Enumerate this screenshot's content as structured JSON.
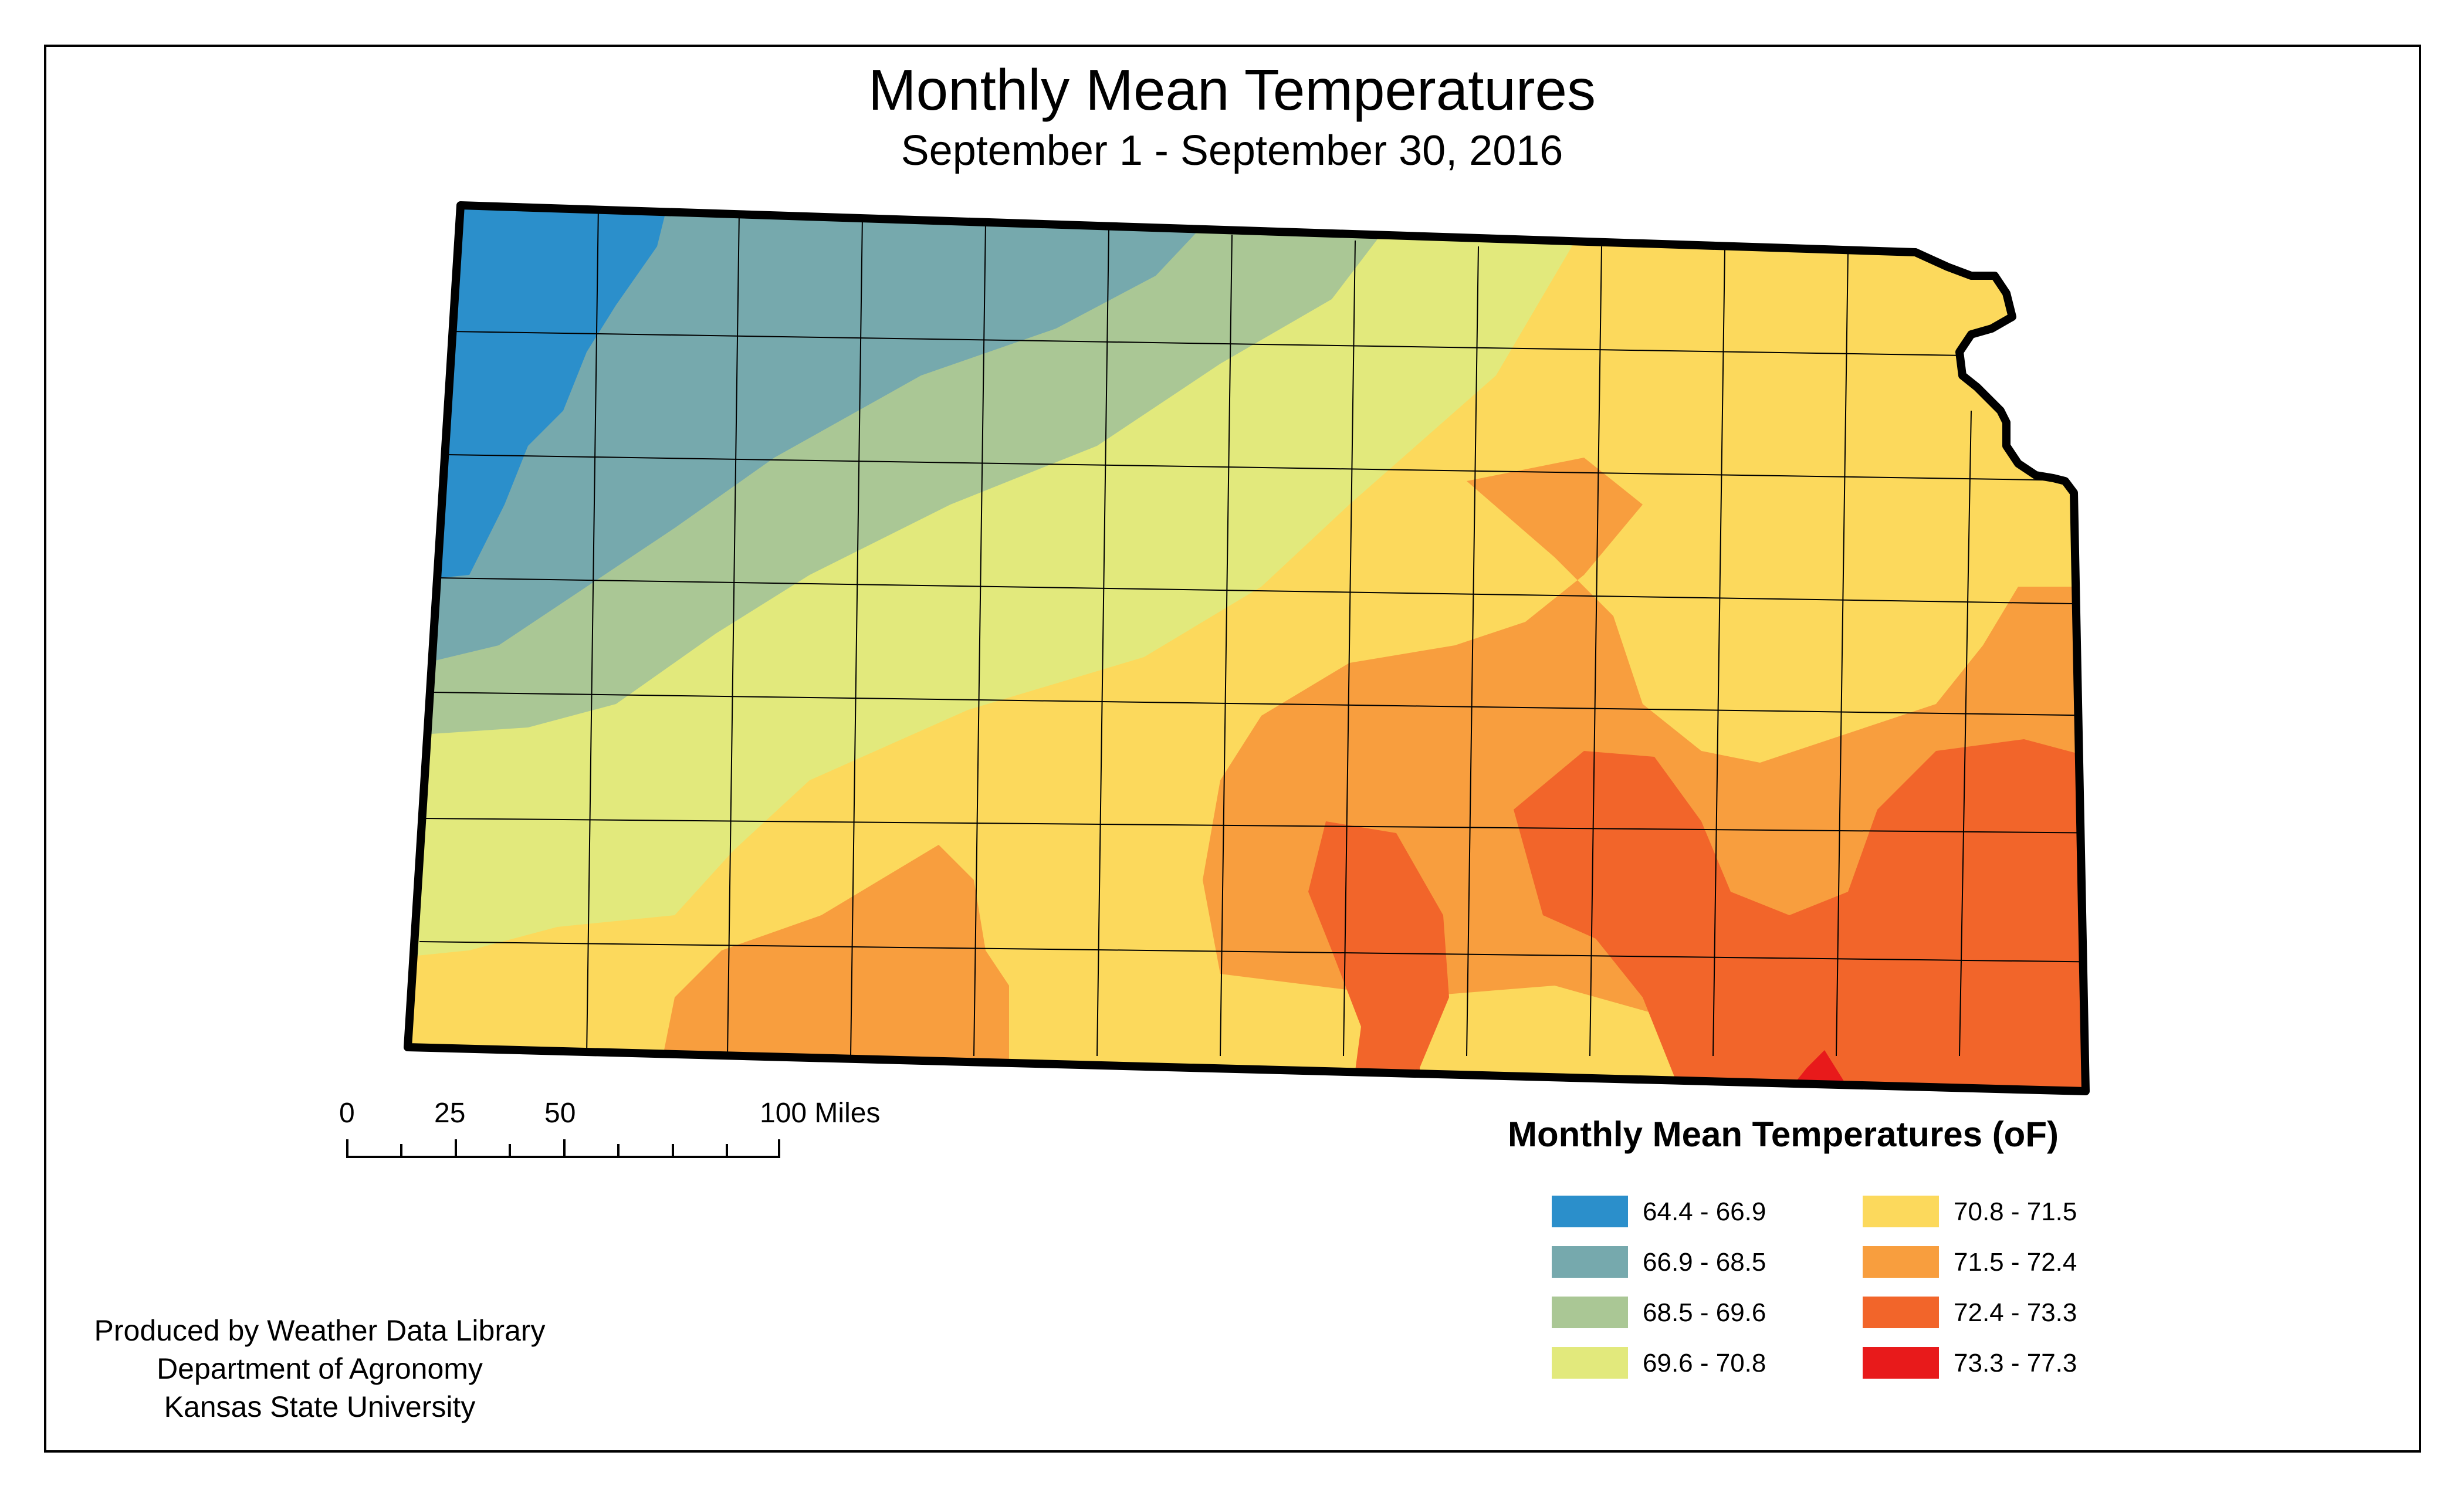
{
  "title": "Monthly Mean Temperatures",
  "subtitle": "September 1 - September 30, 2016",
  "scale_bar": {
    "labels": [
      "0",
      "25",
      "50",
      "100 Miles"
    ]
  },
  "legend": {
    "title": "Monthly Mean Temperatures (oF)",
    "classes": [
      {
        "label": "64.4 - 66.9",
        "color": "#2b8fcb"
      },
      {
        "label": "66.9 - 68.5",
        "color": "#76a9ad"
      },
      {
        "label": "68.5 - 69.6",
        "color": "#aac795"
      },
      {
        "label": "69.6 - 70.8",
        "color": "#e2e97c"
      },
      {
        "label": "70.8 - 71.5",
        "color": "#fcd95c"
      },
      {
        "label": "71.5 - 72.4",
        "color": "#f89e3e"
      },
      {
        "label": "72.4 - 73.3",
        "color": "#f2652a"
      },
      {
        "label": "73.3 - 77.3",
        "color": "#e81a1b"
      }
    ]
  },
  "credits": {
    "line1": "Produced by Weather Data Library",
    "line2": "Department of Agronomy",
    "line3": "Kansas State University"
  },
  "map": {
    "region": "Kansas",
    "trend": "cooler in the northwest, warmer in the southeast"
  }
}
